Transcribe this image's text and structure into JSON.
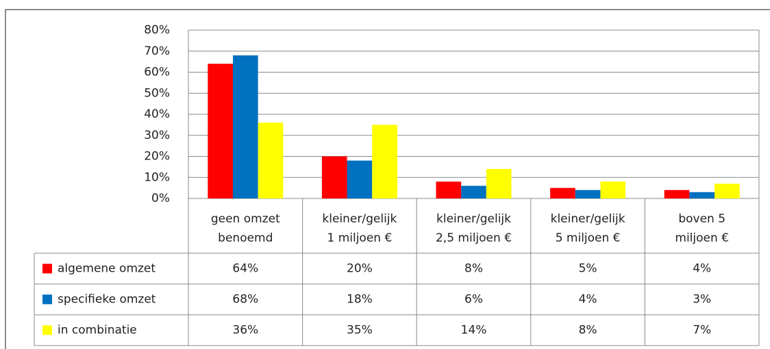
{
  "chart_data": {
    "type": "bar",
    "categories": [
      "geen omzet\nbenoemd",
      "kleiner/gelijk\n1 miljoen €",
      "kleiner/gelijk\n2,5 miljoen €",
      "kleiner/gelijk\n5 miljoen €",
      "boven 5\nmiljoen €"
    ],
    "series": [
      {
        "name": "algemene omzet",
        "color": "#ff0000",
        "values": [
          64,
          20,
          8,
          5,
          4
        ],
        "value_labels": [
          "64%",
          "20%",
          "8%",
          "5%",
          "4%"
        ]
      },
      {
        "name": "specifieke omzet",
        "color": "#0070c0",
        "values": [
          68,
          18,
          6,
          4,
          3
        ],
        "value_labels": [
          "68%",
          "18%",
          "6%",
          "4%",
          "3%"
        ]
      },
      {
        "name": "in combinatie",
        "color": "#ffff00",
        "values": [
          36,
          35,
          14,
          8,
          7
        ],
        "value_labels": [
          "36%",
          "35%",
          "14%",
          "8%",
          "7%"
        ]
      }
    ],
    "ylim": [
      0,
      80
    ],
    "yticks": [
      {
        "value": 0,
        "label": "0%"
      },
      {
        "value": 10,
        "label": "10%"
      },
      {
        "value": 20,
        "label": "20%"
      },
      {
        "value": 30,
        "label": "30%"
      },
      {
        "value": 40,
        "label": "40%"
      },
      {
        "value": 50,
        "label": "50%"
      },
      {
        "value": 60,
        "label": "60%"
      },
      {
        "value": 70,
        "label": "70%"
      },
      {
        "value": 80,
        "label": "80%"
      }
    ],
    "grid": true
  }
}
